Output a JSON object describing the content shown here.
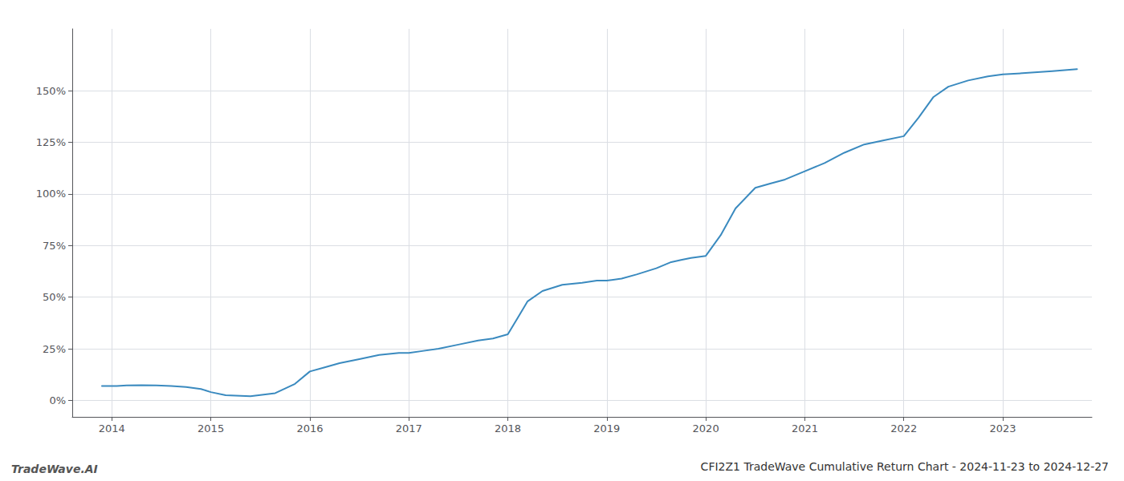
{
  "chart_data": {
    "type": "line",
    "title": "CFI2Z1 TradeWave Cumulative Return Chart - 2024-11-23 to 2024-12-27",
    "annotations": [
      "TradeWave.AI"
    ],
    "color": "#3a8abf",
    "x": [
      2013.9,
      2014.05,
      2014.15,
      2014.3,
      2014.45,
      2014.6,
      2014.75,
      2014.9,
      2015.0,
      2015.15,
      2015.4,
      2015.65,
      2015.85,
      2016.0,
      2016.15,
      2016.3,
      2016.5,
      2016.7,
      2016.9,
      2017.0,
      2017.15,
      2017.3,
      2017.5,
      2017.7,
      2017.85,
      2018.0,
      2018.1,
      2018.2,
      2018.35,
      2018.55,
      2018.75,
      2018.9,
      2019.0,
      2019.15,
      2019.3,
      2019.5,
      2019.65,
      2019.75,
      2019.85,
      2020.0,
      2020.15,
      2020.3,
      2020.5,
      2020.65,
      2020.8,
      2021.0,
      2021.2,
      2021.4,
      2021.6,
      2021.8,
      2022.0,
      2022.15,
      2022.3,
      2022.45,
      2022.65,
      2022.85,
      2023.0,
      2023.2,
      2023.5,
      2023.75
    ],
    "values": [
      7,
      7,
      7.2,
      7.3,
      7.2,
      7.0,
      6.5,
      5.5,
      4,
      2.5,
      2,
      3.5,
      8,
      14,
      16,
      18,
      20,
      22,
      23,
      23,
      24,
      25,
      27,
      29,
      30,
      32,
      40,
      48,
      53,
      56,
      57,
      58,
      58,
      59,
      61,
      64,
      67,
      68,
      69,
      70,
      80,
      93,
      103,
      105,
      107,
      111,
      115,
      120,
      124,
      126,
      128,
      137,
      147,
      152,
      155,
      157,
      158,
      158.5,
      159.5,
      160.5
    ],
    "xlim": [
      2013.6,
      2023.9
    ],
    "xticks": [
      2014,
      2015,
      2016,
      2017,
      2018,
      2019,
      2020,
      2021,
      2022,
      2023
    ],
    "ylim": [
      -8,
      180
    ],
    "yticks": [
      {
        "value": 0,
        "label": "0%"
      },
      {
        "value": 25,
        "label": "25%"
      },
      {
        "value": 50,
        "label": "50%"
      },
      {
        "value": 75,
        "label": "75%"
      },
      {
        "value": 100,
        "label": "100%"
      },
      {
        "value": 125,
        "label": "125%"
      },
      {
        "value": 150,
        "label": "150%"
      }
    ],
    "grid": true
  }
}
